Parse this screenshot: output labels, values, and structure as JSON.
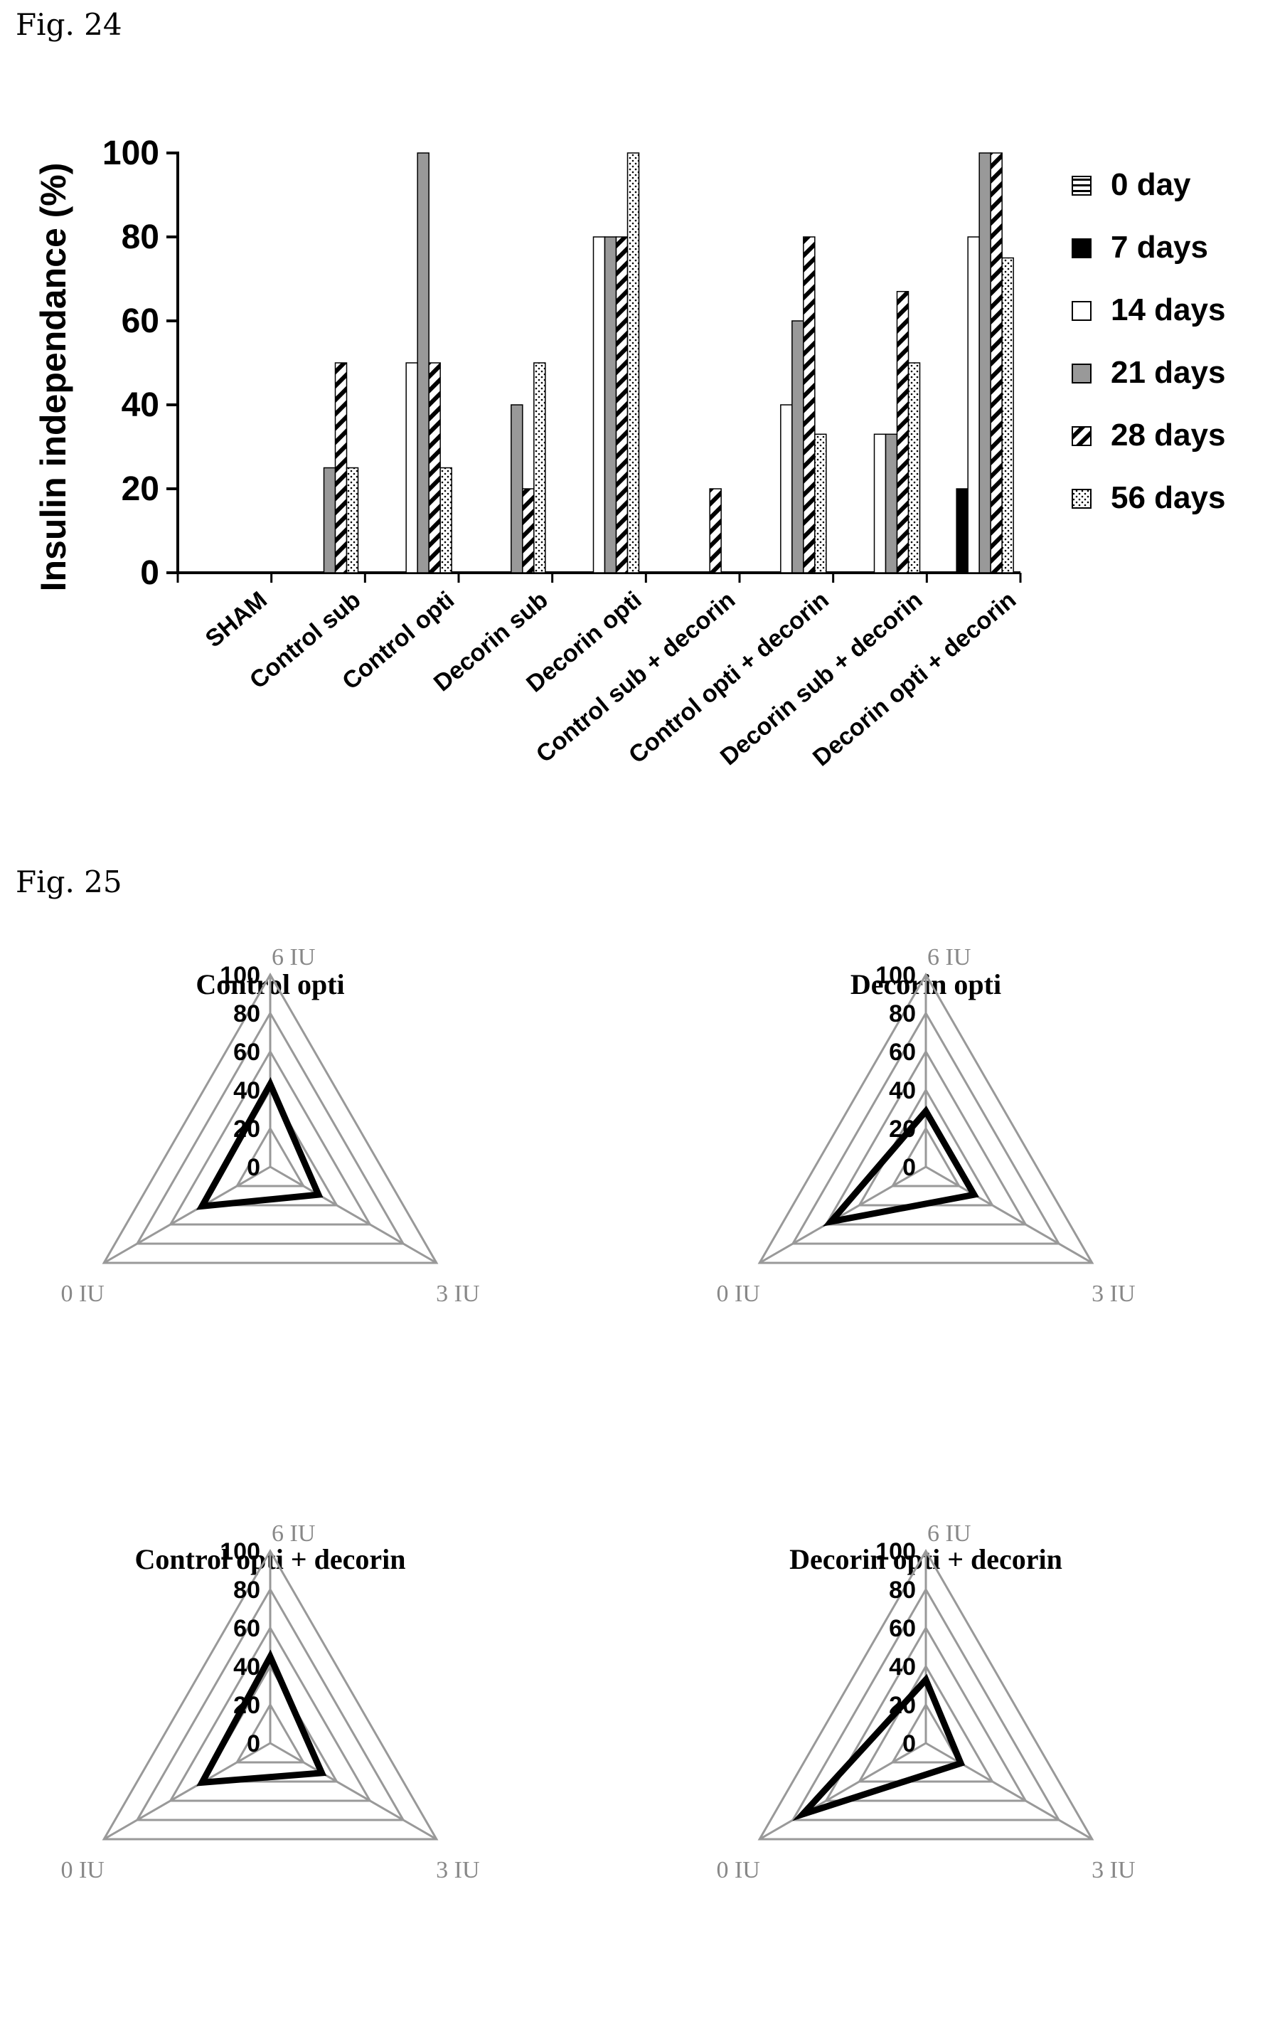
{
  "fig24": {
    "label": "Fig. 24"
  },
  "fig25": {
    "label": "Fig. 25"
  },
  "chart_data": [
    {
      "type": "bar",
      "ylabel": "Insulin independance (%)",
      "ylim": [
        0,
        100
      ],
      "yticks": [
        "0",
        "20",
        "40",
        "60",
        "80",
        "100"
      ],
      "categories": [
        "SHAM",
        "Control sub",
        "Control opti",
        "Decorin sub",
        "Decorin opti",
        "Control sub + decorin",
        "Control opti + decorin",
        "Decorin sub + decorin",
        "Decorin opti + decorin"
      ],
      "legend_position": "right",
      "series": [
        {
          "name": "0 day",
          "pattern": "hline",
          "values": [
            0,
            0,
            0,
            0,
            0,
            0,
            0,
            0,
            0
          ]
        },
        {
          "name": "7 days",
          "pattern": "black",
          "values": [
            0,
            0,
            0,
            0,
            0,
            0,
            0,
            0,
            20
          ]
        },
        {
          "name": "14 days",
          "pattern": "white",
          "values": [
            0,
            0,
            50,
            0,
            80,
            0,
            40,
            33,
            80
          ]
        },
        {
          "name": "21 days",
          "pattern": "gray",
          "values": [
            0,
            25,
            100,
            40,
            80,
            0,
            60,
            33,
            100
          ]
        },
        {
          "name": "28 days",
          "pattern": "diag",
          "values": [
            0,
            50,
            50,
            20,
            80,
            20,
            80,
            67,
            100
          ]
        },
        {
          "name": "56 days",
          "pattern": "dots",
          "values": [
            0,
            25,
            25,
            50,
            100,
            0,
            33,
            50,
            75
          ]
        }
      ]
    },
    {
      "type": "radar",
      "title": "Control opti",
      "axes": [
        "6 IU",
        "3 IU",
        "0 IU"
      ],
      "ticks": [
        "100",
        "80",
        "60",
        "40",
        "20",
        "0"
      ],
      "rlim": [
        0,
        100
      ],
      "values": [
        43,
        29,
        41
      ]
    },
    {
      "type": "radar",
      "title": "Decorin opti",
      "axes": [
        "6 IU",
        "3 IU",
        "0 IU"
      ],
      "ticks": [
        "100",
        "80",
        "60",
        "40",
        "20",
        "0"
      ],
      "rlim": [
        0,
        100
      ],
      "values": [
        29,
        29,
        57
      ]
    },
    {
      "type": "radar",
      "title": "Control opti + decorin",
      "axes": [
        "6 IU",
        "3 IU",
        "0 IU"
      ],
      "ticks": [
        "100",
        "80",
        "60",
        "40",
        "20",
        "0"
      ],
      "rlim": [
        0,
        100
      ],
      "values": [
        45,
        31,
        41
      ]
    },
    {
      "type": "radar",
      "title": "Decorin opti + decorin",
      "axes": [
        "6 IU",
        "3 IU",
        "0 IU"
      ],
      "ticks": [
        "100",
        "80",
        "60",
        "40",
        "20",
        "0"
      ],
      "rlim": [
        0,
        100
      ],
      "values": [
        33,
        21,
        74
      ]
    }
  ]
}
